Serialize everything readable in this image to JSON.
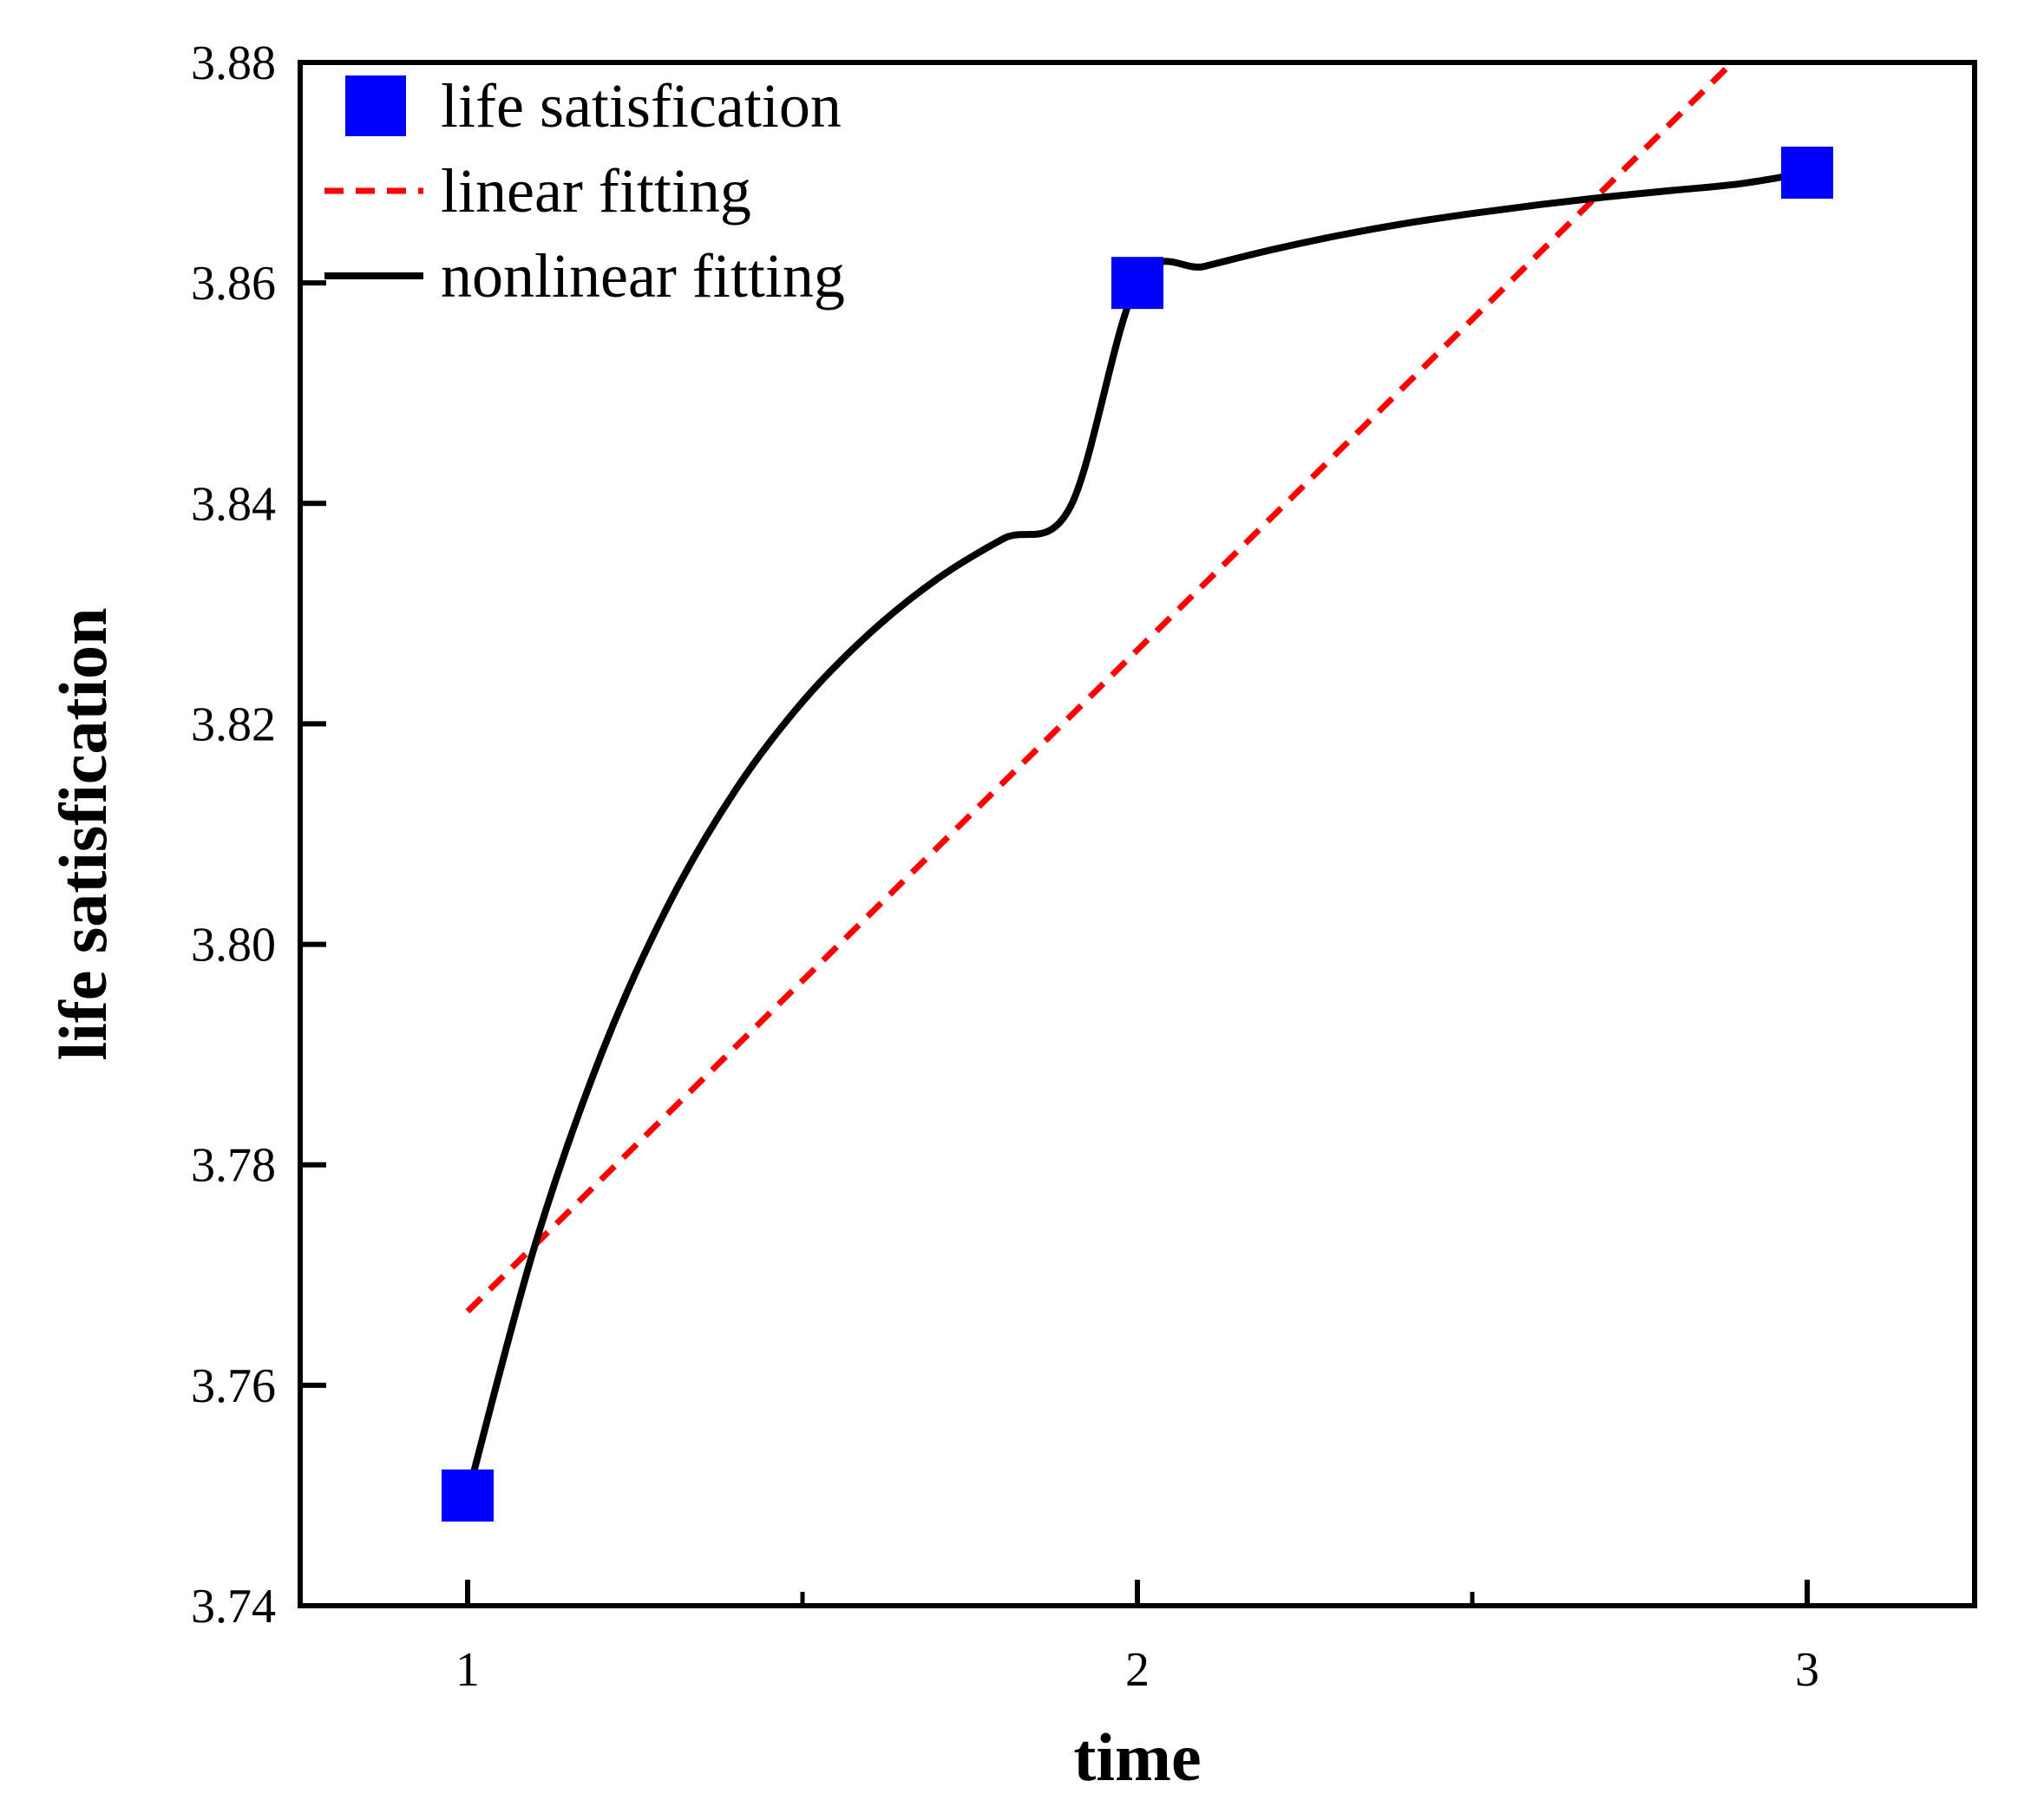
{
  "chart_data": {
    "type": "scatter",
    "title": "",
    "xlabel": "time",
    "ylabel": "life satisfication",
    "xlim": [
      0.75,
      3.25
    ],
    "ylim": [
      3.74,
      3.88
    ],
    "xticks": [
      1,
      2,
      3
    ],
    "xtick_labels": [
      "1",
      "2",
      "3"
    ],
    "x_minor_ticks": [
      1.5,
      2.5
    ],
    "yticks": [
      3.74,
      3.76,
      3.78,
      3.8,
      3.82,
      3.84,
      3.86,
      3.88
    ],
    "ytick_labels": [
      "3.74",
      "3.76",
      "3.78",
      "3.80",
      "3.82",
      "3.84",
      "3.86",
      "3.88"
    ],
    "grid": false,
    "legend_position": "top-left",
    "series": [
      {
        "name": "life satisfication",
        "kind": "scatter",
        "marker": "square",
        "color": "#0000ff",
        "x": [
          1,
          2,
          3
        ],
        "y": [
          3.75,
          3.86,
          3.87
        ]
      },
      {
        "name": "linear fitting",
        "kind": "line",
        "style": "dashed",
        "color": "#ff0000",
        "x": [
          1,
          2.9
        ],
        "y": [
          3.7667,
          3.8807
        ]
      },
      {
        "name": "nonlinear fitting",
        "kind": "line",
        "style": "solid",
        "color": "#000000",
        "x": [
          1,
          1.1,
          1.2,
          1.3,
          1.4,
          1.5,
          1.6,
          1.7,
          1.8,
          1.9,
          2.0,
          2.1,
          2.2,
          2.3,
          2.4,
          2.5,
          2.6,
          2.7,
          2.8,
          2.9,
          3.0
        ],
        "y": [
          3.75,
          3.7726,
          3.7901,
          3.8036,
          3.814,
          3.822,
          3.8282,
          3.8331,
          3.8368,
          3.8397,
          3.86,
          3.8615,
          3.863,
          3.8643,
          3.8654,
          3.8663,
          3.8671,
          3.8678,
          3.8684,
          3.869,
          3.87
        ]
      }
    ]
  }
}
